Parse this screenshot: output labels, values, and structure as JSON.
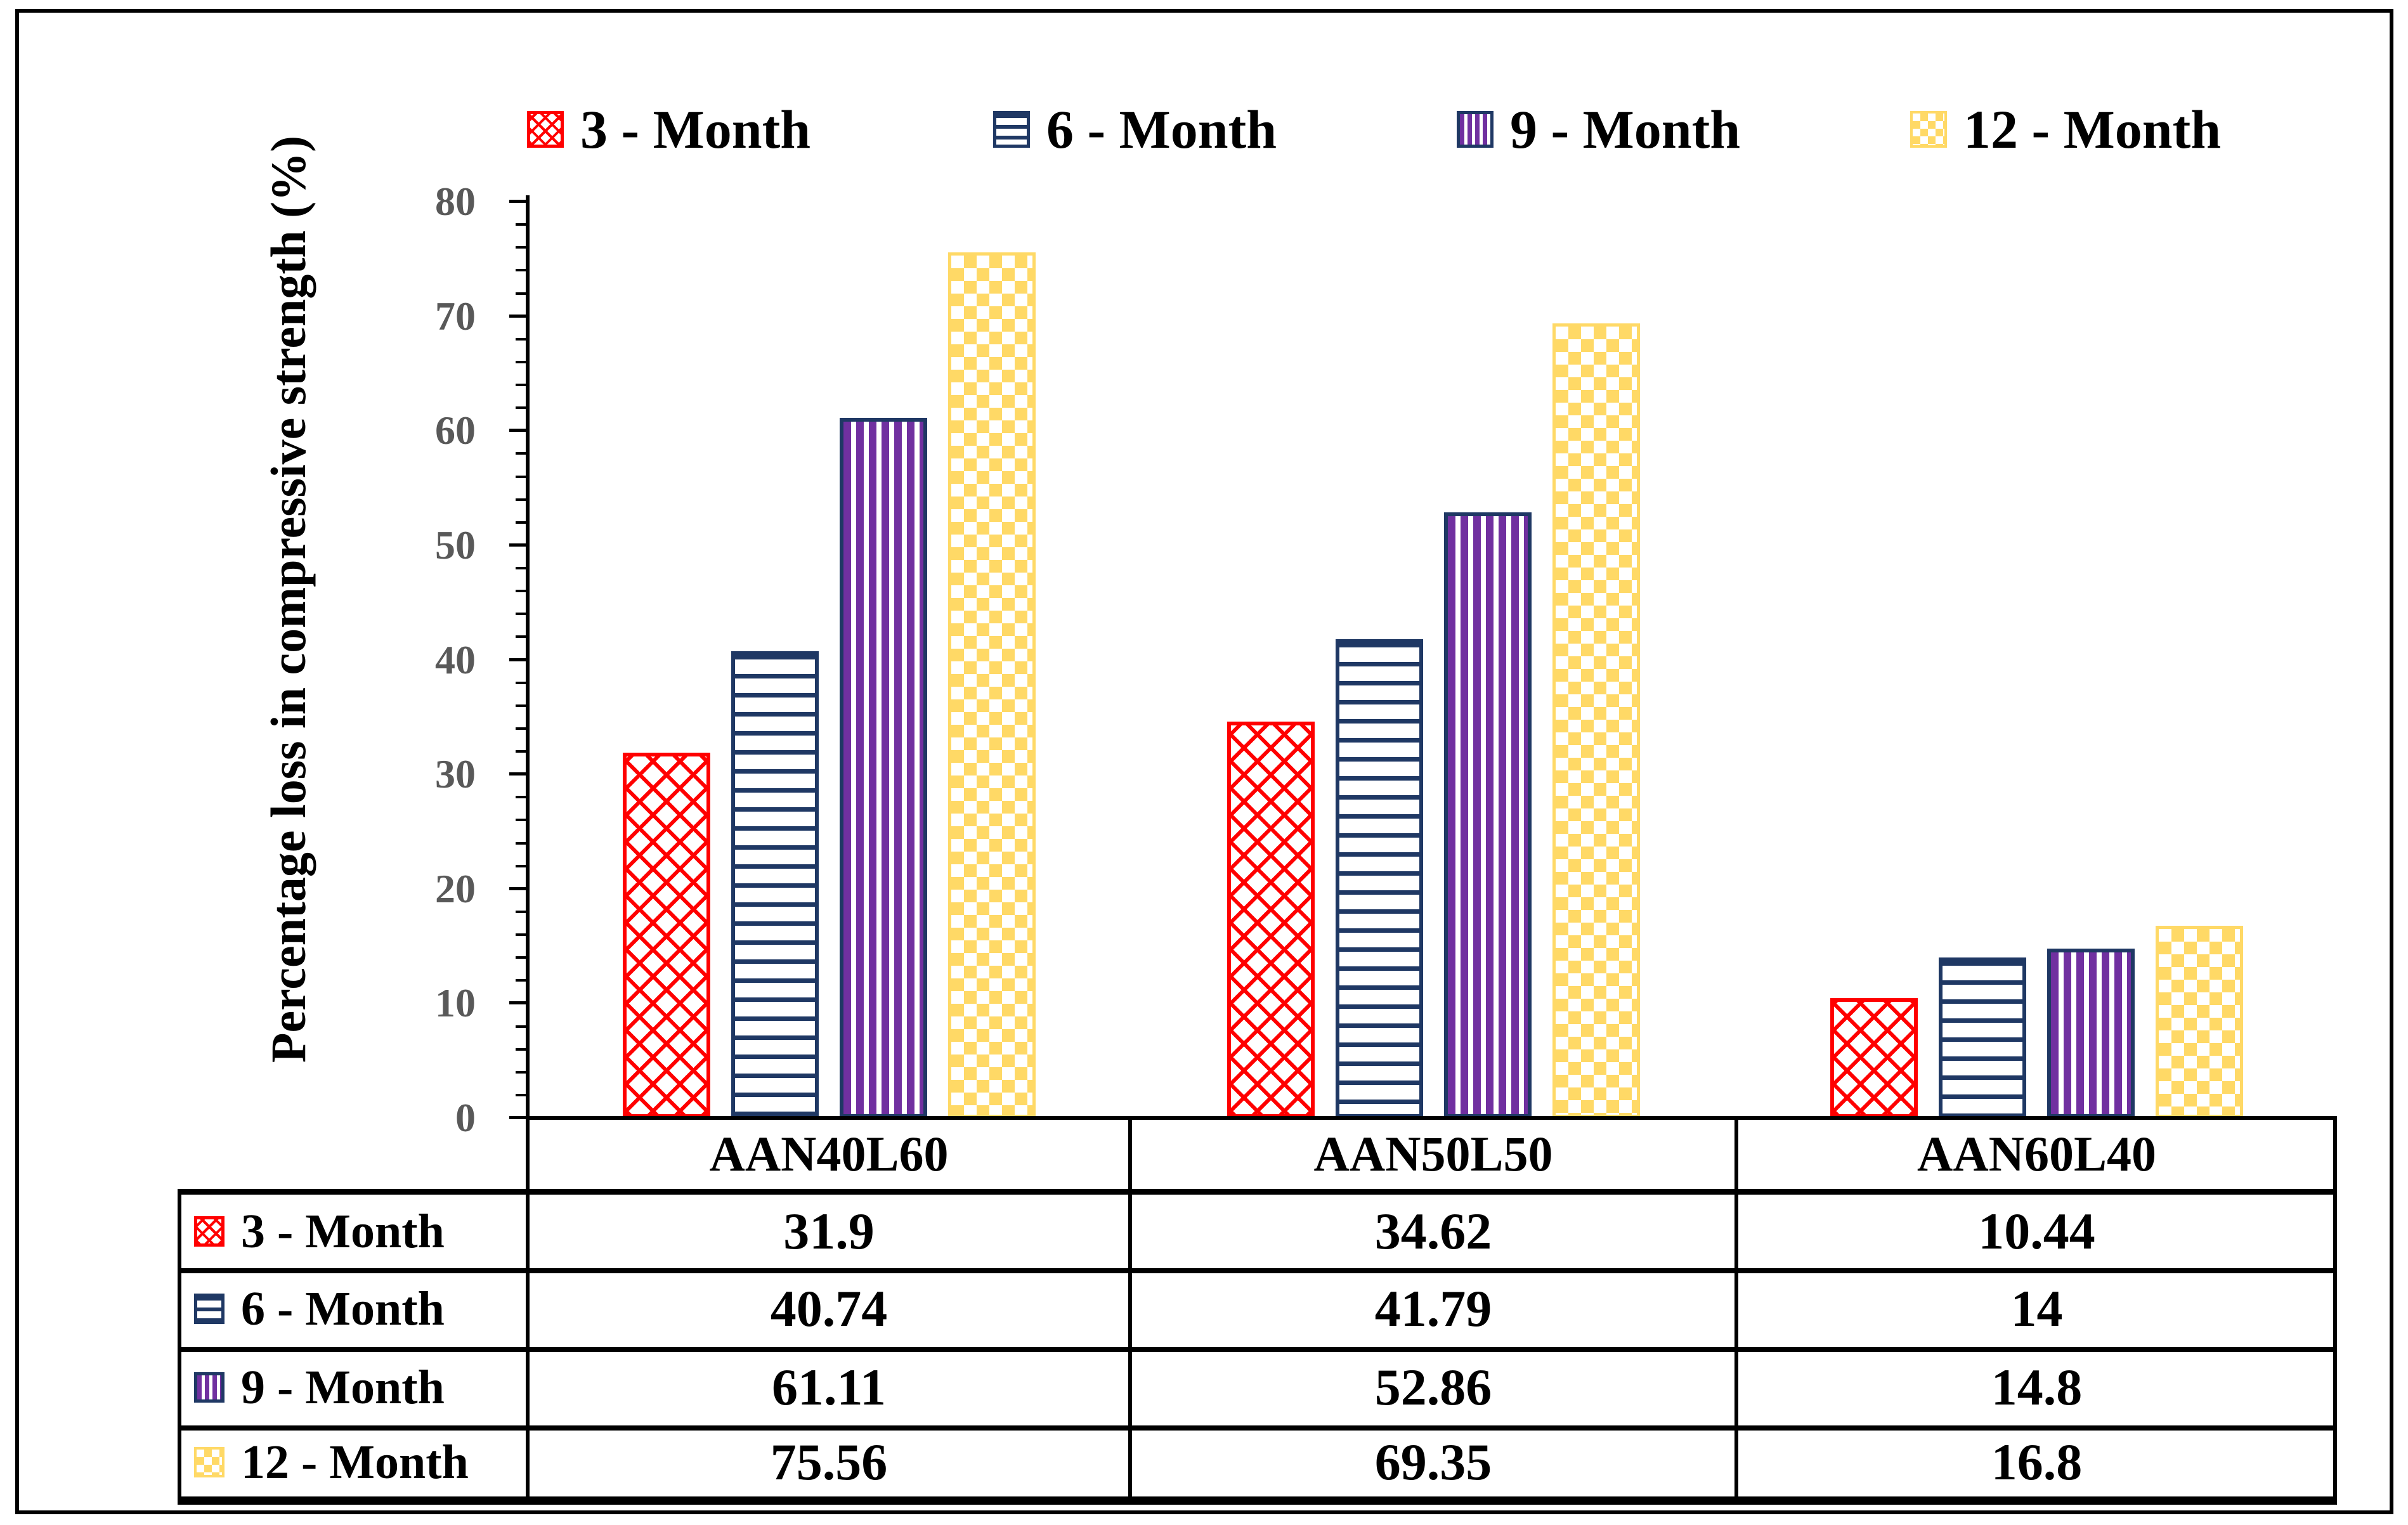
{
  "figure": {
    "background": "#FFFFFF",
    "border_color": "#000000"
  },
  "chart_data": {
    "type": "bar",
    "title": "",
    "xlabel": "",
    "ylabel": "Percentage loss in compressive strength (%)",
    "ylim": [
      0,
      80
    ],
    "ytick_step": 10,
    "minor_tick_step": 2,
    "ytick_labels": [
      "0",
      "10",
      "20",
      "30",
      "40",
      "50",
      "60",
      "70",
      "80"
    ],
    "grid": false,
    "legend_position": "top",
    "axis_label_color": "#595959",
    "categories": [
      "AAN40L60",
      "AAN50L50",
      "AAN60L40"
    ],
    "series": [
      {
        "name": "3 - Month",
        "values": [
          31.9,
          34.62,
          10.44
        ],
        "display_values": [
          "31.9",
          "34.62",
          "10.44"
        ],
        "color": "#FF0000",
        "pattern": "diagonal-crosshatch",
        "border_color": "#FF0000"
      },
      {
        "name": "6 - Month",
        "values": [
          40.74,
          41.79,
          14
        ],
        "display_values": [
          "40.74",
          "41.79",
          "14"
        ],
        "color": "#1F3864",
        "pattern": "horizontal-lines",
        "border_color": "#1F3864"
      },
      {
        "name": "9 - Month",
        "values": [
          61.11,
          52.86,
          14.8
        ],
        "display_values": [
          "61.11",
          "52.86",
          "14.8"
        ],
        "color": "#7030A0",
        "pattern": "vertical-lines",
        "border_color": "#1F3864"
      },
      {
        "name": "12 - Month",
        "values": [
          75.56,
          69.35,
          16.8
        ],
        "display_values": [
          "75.56",
          "69.35",
          "16.8"
        ],
        "color": "#FFD966",
        "pattern": "diamond-checker",
        "border_color": "#FFD966"
      }
    ]
  }
}
